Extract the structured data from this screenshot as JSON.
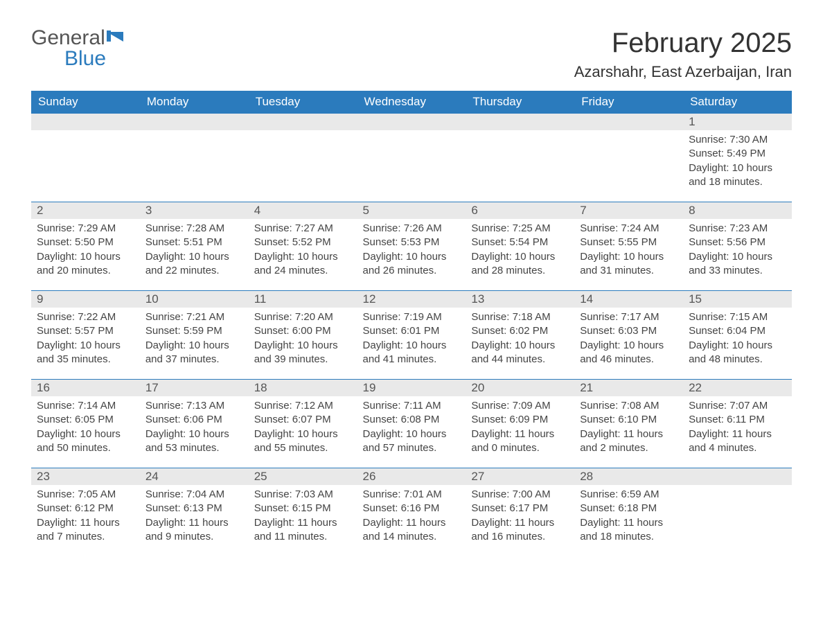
{
  "logo": {
    "text1": "General",
    "text2": "Blue"
  },
  "title": "February 2025",
  "location": "Azarshahr, East Azerbaijan, Iran",
  "colors": {
    "header_bg": "#2b7bbd",
    "header_text": "#ffffff",
    "daynum_bg": "#e9e9e9",
    "row_border": "#2b7bbd",
    "body_text": "#444",
    "logo_blue": "#2b7bbd",
    "logo_gray": "#555"
  },
  "weekdays": [
    "Sunday",
    "Monday",
    "Tuesday",
    "Wednesday",
    "Thursday",
    "Friday",
    "Saturday"
  ],
  "weeks": [
    [
      null,
      null,
      null,
      null,
      null,
      null,
      {
        "n": "1",
        "sunrise": "7:30 AM",
        "sunset": "5:49 PM",
        "dl1": "10 hours",
        "dl2": "and 18 minutes."
      }
    ],
    [
      {
        "n": "2",
        "sunrise": "7:29 AM",
        "sunset": "5:50 PM",
        "dl1": "10 hours",
        "dl2": "and 20 minutes."
      },
      {
        "n": "3",
        "sunrise": "7:28 AM",
        "sunset": "5:51 PM",
        "dl1": "10 hours",
        "dl2": "and 22 minutes."
      },
      {
        "n": "4",
        "sunrise": "7:27 AM",
        "sunset": "5:52 PM",
        "dl1": "10 hours",
        "dl2": "and 24 minutes."
      },
      {
        "n": "5",
        "sunrise": "7:26 AM",
        "sunset": "5:53 PM",
        "dl1": "10 hours",
        "dl2": "and 26 minutes."
      },
      {
        "n": "6",
        "sunrise": "7:25 AM",
        "sunset": "5:54 PM",
        "dl1": "10 hours",
        "dl2": "and 28 minutes."
      },
      {
        "n": "7",
        "sunrise": "7:24 AM",
        "sunset": "5:55 PM",
        "dl1": "10 hours",
        "dl2": "and 31 minutes."
      },
      {
        "n": "8",
        "sunrise": "7:23 AM",
        "sunset": "5:56 PM",
        "dl1": "10 hours",
        "dl2": "and 33 minutes."
      }
    ],
    [
      {
        "n": "9",
        "sunrise": "7:22 AM",
        "sunset": "5:57 PM",
        "dl1": "10 hours",
        "dl2": "and 35 minutes."
      },
      {
        "n": "10",
        "sunrise": "7:21 AM",
        "sunset": "5:59 PM",
        "dl1": "10 hours",
        "dl2": "and 37 minutes."
      },
      {
        "n": "11",
        "sunrise": "7:20 AM",
        "sunset": "6:00 PM",
        "dl1": "10 hours",
        "dl2": "and 39 minutes."
      },
      {
        "n": "12",
        "sunrise": "7:19 AM",
        "sunset": "6:01 PM",
        "dl1": "10 hours",
        "dl2": "and 41 minutes."
      },
      {
        "n": "13",
        "sunrise": "7:18 AM",
        "sunset": "6:02 PM",
        "dl1": "10 hours",
        "dl2": "and 44 minutes."
      },
      {
        "n": "14",
        "sunrise": "7:17 AM",
        "sunset": "6:03 PM",
        "dl1": "10 hours",
        "dl2": "and 46 minutes."
      },
      {
        "n": "15",
        "sunrise": "7:15 AM",
        "sunset": "6:04 PM",
        "dl1": "10 hours",
        "dl2": "and 48 minutes."
      }
    ],
    [
      {
        "n": "16",
        "sunrise": "7:14 AM",
        "sunset": "6:05 PM",
        "dl1": "10 hours",
        "dl2": "and 50 minutes."
      },
      {
        "n": "17",
        "sunrise": "7:13 AM",
        "sunset": "6:06 PM",
        "dl1": "10 hours",
        "dl2": "and 53 minutes."
      },
      {
        "n": "18",
        "sunrise": "7:12 AM",
        "sunset": "6:07 PM",
        "dl1": "10 hours",
        "dl2": "and 55 minutes."
      },
      {
        "n": "19",
        "sunrise": "7:11 AM",
        "sunset": "6:08 PM",
        "dl1": "10 hours",
        "dl2": "and 57 minutes."
      },
      {
        "n": "20",
        "sunrise": "7:09 AM",
        "sunset": "6:09 PM",
        "dl1": "11 hours",
        "dl2": "and 0 minutes."
      },
      {
        "n": "21",
        "sunrise": "7:08 AM",
        "sunset": "6:10 PM",
        "dl1": "11 hours",
        "dl2": "and 2 minutes."
      },
      {
        "n": "22",
        "sunrise": "7:07 AM",
        "sunset": "6:11 PM",
        "dl1": "11 hours",
        "dl2": "and 4 minutes."
      }
    ],
    [
      {
        "n": "23",
        "sunrise": "7:05 AM",
        "sunset": "6:12 PM",
        "dl1": "11 hours",
        "dl2": "and 7 minutes."
      },
      {
        "n": "24",
        "sunrise": "7:04 AM",
        "sunset": "6:13 PM",
        "dl1": "11 hours",
        "dl2": "and 9 minutes."
      },
      {
        "n": "25",
        "sunrise": "7:03 AM",
        "sunset": "6:15 PM",
        "dl1": "11 hours",
        "dl2": "and 11 minutes."
      },
      {
        "n": "26",
        "sunrise": "7:01 AM",
        "sunset": "6:16 PM",
        "dl1": "11 hours",
        "dl2": "and 14 minutes."
      },
      {
        "n": "27",
        "sunrise": "7:00 AM",
        "sunset": "6:17 PM",
        "dl1": "11 hours",
        "dl2": "and 16 minutes."
      },
      {
        "n": "28",
        "sunrise": "6:59 AM",
        "sunset": "6:18 PM",
        "dl1": "11 hours",
        "dl2": "and 18 minutes."
      },
      null
    ]
  ],
  "labels": {
    "sunrise": "Sunrise: ",
    "sunset": "Sunset: ",
    "daylight": "Daylight: "
  }
}
